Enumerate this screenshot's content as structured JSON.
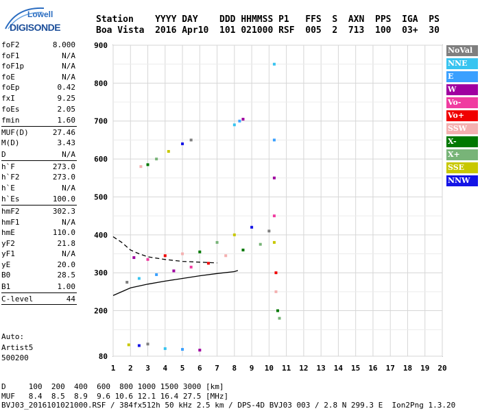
{
  "logo": {
    "line1": "Lowell",
    "line2": "DIGISONDE"
  },
  "header": {
    "labels": "Station    YYYY DAY    DDD HHMMSS P1   FFS  S  AXN  PPS  IGA  PS",
    "values": "Boa Vista  2016 Apr10  101 021000 RSF  005  2  713  100  03+  30"
  },
  "params": [
    {
      "label": "foF2",
      "value": "8.000"
    },
    {
      "label": "foF1",
      "value": "N/A"
    },
    {
      "label": "foF1p",
      "value": "N/A"
    },
    {
      "label": "foE",
      "value": "N/A"
    },
    {
      "label": "foEp",
      "value": "0.42"
    },
    {
      "label": "fxI",
      "value": "9.25"
    },
    {
      "label": "foEs",
      "value": "2.05"
    },
    {
      "label": "fmin",
      "value": "1.60",
      "sep": true
    },
    {
      "label": "MUF(D)",
      "value": "27.46"
    },
    {
      "label": "M(D)",
      "value": "3.43"
    },
    {
      "label": "D",
      "value": "N/A",
      "sep": true
    },
    {
      "label": "h`F",
      "value": "273.0"
    },
    {
      "label": "h`F2",
      "value": "273.0"
    },
    {
      "label": "h`E",
      "value": "N/A"
    },
    {
      "label": "h`Es",
      "value": "100.0",
      "sep": true
    },
    {
      "label": "hmF2",
      "value": "302.3"
    },
    {
      "label": "hmF1",
      "value": "N/A"
    },
    {
      "label": "hmE",
      "value": "110.0"
    },
    {
      "label": "yF2",
      "value": "21.8"
    },
    {
      "label": "yF1",
      "value": "N/A"
    },
    {
      "label": "yE",
      "value": "20.0"
    },
    {
      "label": "B0",
      "value": "28.5"
    },
    {
      "label": "B1",
      "value": "1.00",
      "sep": true
    },
    {
      "label": "C-level",
      "value": "44",
      "sep": true
    }
  ],
  "auto": {
    "line1": "Auto:",
    "line2": "Artist5",
    "line3": "500200"
  },
  "footer": {
    "line1": "D     100  200  400  600  800 1000 1500 3000 [km]",
    "line2": "MUF   8.4  8.5  8.9  9.6 10.6 12.1 16.4 27.5 [MHz]",
    "line3": "BVJ03_2016101021000.RSF / 384fx512h 50 kHz 2.5 km / DPS-4D BVJ03 003 / 2.8 N 299.3 E  Ion2Png 1.3.20"
  },
  "legend": [
    {
      "label": "NoVal",
      "color": "#7f7f7f"
    },
    {
      "label": "NNE",
      "color": "#38c4f0"
    },
    {
      "label": "E",
      "color": "#3aa0ff"
    },
    {
      "label": "W",
      "color": "#a000a0"
    },
    {
      "label": "Vo-",
      "color": "#f03ca0"
    },
    {
      "label": "Vo+",
      "color": "#f00000"
    },
    {
      "label": "SSW",
      "color": "#f4b0b0"
    },
    {
      "label": "X-",
      "color": "#007800"
    },
    {
      "label": "X+",
      "color": "#78b478"
    },
    {
      "label": "SSE",
      "color": "#c8c800"
    },
    {
      "label": "NNW",
      "color": "#1414e6"
    }
  ],
  "chart_data": {
    "type": "scatter",
    "title": "",
    "xlabel": "",
    "ylabel": "",
    "xlim": [
      1,
      20
    ],
    "ylim": [
      80,
      900
    ],
    "x_ticks": [
      1,
      2,
      3,
      4,
      5,
      6,
      7,
      8,
      9,
      10,
      11,
      12,
      13,
      14,
      15,
      16,
      17,
      18,
      19,
      20
    ],
    "y_ticks": [
      80,
      200,
      300,
      400,
      500,
      600,
      700,
      800,
      900
    ],
    "grid": true,
    "series": [
      {
        "name": "F2 trace",
        "points": [
          [
            1.8,
            275
          ],
          [
            2.5,
            285
          ],
          [
            3.5,
            295
          ],
          [
            4.5,
            305
          ],
          [
            5.5,
            315
          ],
          [
            6.5,
            325
          ],
          [
            7.5,
            345
          ],
          [
            8.5,
            360
          ],
          [
            9.5,
            375
          ],
          [
            10.3,
            380
          ]
        ]
      },
      {
        "name": "F2 spread",
        "points": [
          [
            2.2,
            340
          ],
          [
            3.0,
            335
          ],
          [
            4.0,
            345
          ],
          [
            5.0,
            350
          ],
          [
            6.0,
            355
          ],
          [
            7.0,
            380
          ],
          [
            8.0,
            400
          ],
          [
            9.0,
            420
          ],
          [
            10.0,
            410
          ]
        ]
      },
      {
        "name": "multiple echo",
        "points": [
          [
            2.6,
            580
          ],
          [
            3.0,
            585
          ],
          [
            3.5,
            600
          ],
          [
            4.2,
            620
          ],
          [
            5.0,
            640
          ],
          [
            5.5,
            650
          ],
          [
            8.0,
            690
          ],
          [
            8.3,
            700
          ],
          [
            8.5,
            705
          ]
        ]
      },
      {
        "name": "Es",
        "points": [
          [
            1.9,
            110
          ],
          [
            2.5,
            108
          ],
          [
            3.0,
            112
          ],
          [
            4.0,
            100
          ],
          [
            5.0,
            98
          ],
          [
            6.0,
            96
          ]
        ]
      },
      {
        "name": "spike",
        "points": [
          [
            10.3,
            850
          ],
          [
            10.3,
            650
          ],
          [
            10.3,
            550
          ],
          [
            10.3,
            450
          ],
          [
            10.4,
            300
          ],
          [
            10.4,
            250
          ],
          [
            10.5,
            200
          ],
          [
            10.6,
            180
          ]
        ]
      }
    ],
    "curves": [
      {
        "name": "profile solid",
        "points": [
          [
            1.0,
            240
          ],
          [
            2.0,
            260
          ],
          [
            3.0,
            270
          ],
          [
            4.0,
            278
          ],
          [
            5.0,
            285
          ],
          [
            6.0,
            292
          ],
          [
            7.0,
            298
          ],
          [
            8.0,
            303
          ],
          [
            8.2,
            306
          ]
        ]
      },
      {
        "name": "profile dashed",
        "points": [
          [
            1.0,
            395
          ],
          [
            1.5,
            380
          ],
          [
            2.0,
            360
          ],
          [
            2.5,
            350
          ],
          [
            3.0,
            342
          ],
          [
            4.0,
            335
          ],
          [
            5.0,
            330
          ],
          [
            6.0,
            328
          ],
          [
            7.0,
            326
          ]
        ]
      }
    ]
  }
}
